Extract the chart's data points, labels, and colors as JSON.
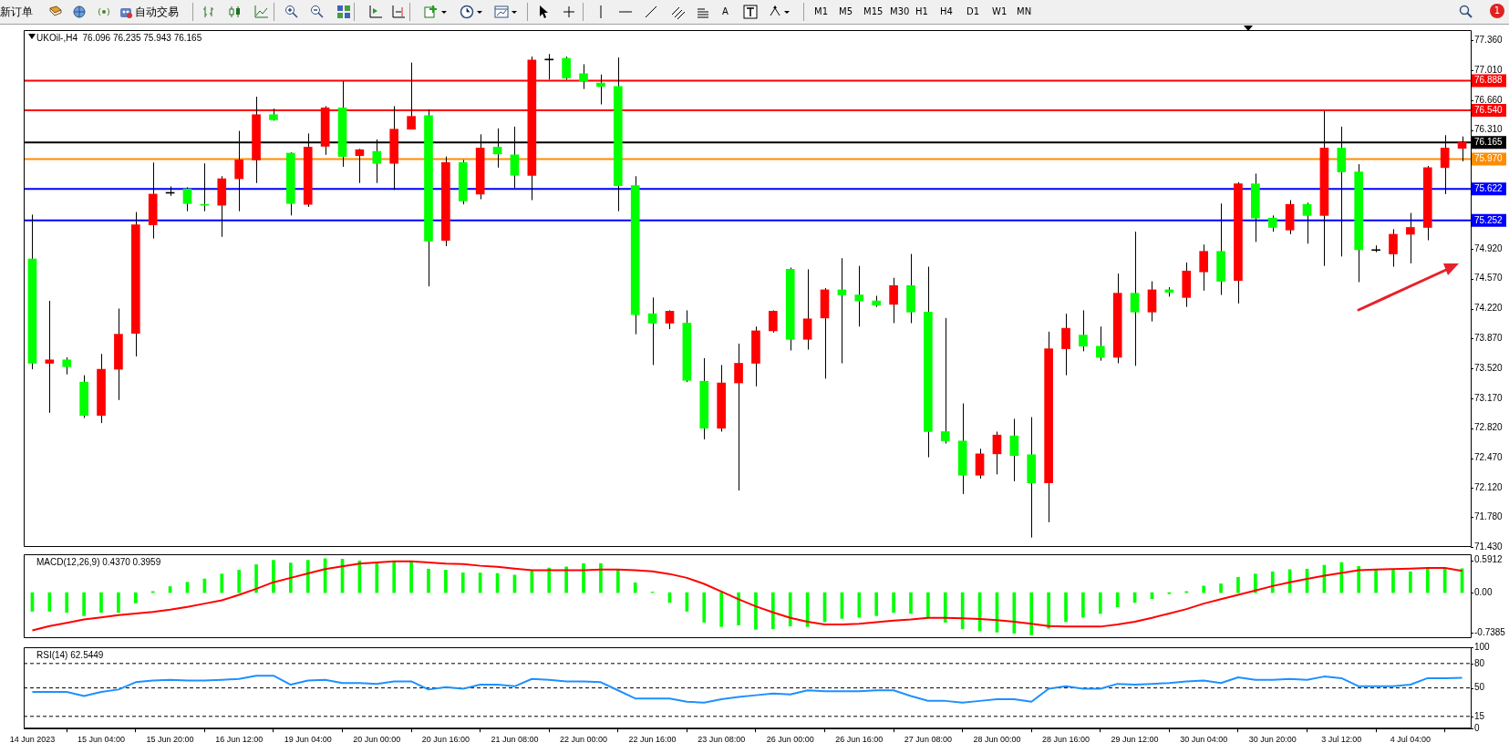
{
  "chart_data": [
    {
      "type": "candlestick",
      "title": "UKOil-,H4  76.096 76.235 75.943 76.165",
      "categories": [
        null,
        null,
        null,
        null,
        null,
        null,
        null,
        null,
        null,
        null,
        null,
        null,
        null,
        null,
        null,
        null,
        null,
        null,
        null,
        null,
        null,
        null,
        null,
        null,
        null,
        null,
        null,
        null,
        null,
        null,
        null,
        null,
        null,
        null,
        null,
        null,
        null,
        null,
        null,
        null,
        null,
        null,
        null,
        null,
        null,
        null,
        null,
        null,
        null,
        null,
        null,
        null,
        null,
        null,
        null,
        null,
        null,
        null,
        null,
        null,
        null,
        null,
        null,
        null,
        null,
        null,
        null,
        null,
        null,
        null,
        null,
        null,
        null,
        null,
        null,
        null,
        null,
        null,
        null,
        null,
        null,
        null,
        null,
        null
      ],
      "ohlc": [
        [
          74.8,
          75.32,
          73.51,
          73.58
        ],
        [
          73.58,
          74.31,
          73.0,
          73.62
        ],
        [
          73.62,
          73.65,
          73.45,
          73.54
        ],
        [
          73.36,
          73.44,
          72.94,
          72.97
        ],
        [
          72.97,
          73.69,
          72.88,
          73.51
        ],
        [
          73.51,
          74.22,
          73.15,
          73.92
        ],
        [
          73.93,
          75.35,
          73.66,
          75.2
        ],
        [
          75.2,
          75.93,
          75.04,
          75.56
        ],
        [
          75.57,
          75.65,
          75.54,
          75.58
        ],
        [
          75.62,
          75.64,
          75.36,
          75.45
        ],
        [
          75.44,
          75.92,
          75.36,
          75.43
        ],
        [
          75.43,
          75.77,
          75.06,
          75.74
        ],
        [
          75.74,
          76.3,
          75.36,
          75.96
        ],
        [
          75.96,
          76.7,
          75.69,
          76.49
        ],
        [
          76.49,
          76.56,
          76.42,
          76.43
        ],
        [
          76.04,
          76.05,
          75.31,
          75.45
        ],
        [
          75.44,
          76.27,
          75.41,
          76.11
        ],
        [
          76.12,
          76.59,
          76.02,
          76.57
        ],
        [
          76.57,
          76.88,
          75.88,
          76.0
        ],
        [
          76.01,
          76.09,
          75.69,
          76.08
        ],
        [
          76.06,
          76.2,
          75.69,
          75.92
        ],
        [
          75.92,
          76.59,
          75.61,
          76.32
        ],
        [
          76.32,
          77.1,
          76.32,
          76.47
        ],
        [
          76.48,
          76.55,
          74.48,
          75.01
        ],
        [
          75.02,
          76.0,
          74.95,
          75.93
        ],
        [
          75.93,
          75.96,
          75.44,
          75.48
        ],
        [
          75.56,
          76.26,
          75.5,
          76.1
        ],
        [
          76.11,
          76.33,
          75.87,
          76.03
        ],
        [
          76.02,
          76.35,
          75.63,
          75.78
        ],
        [
          75.78,
          77.17,
          75.49,
          77.13
        ],
        [
          77.13,
          77.2,
          76.9,
          77.14
        ],
        [
          77.15,
          77.17,
          76.9,
          76.92
        ],
        [
          76.97,
          77.08,
          76.79,
          76.88
        ],
        [
          76.86,
          76.96,
          76.61,
          76.82
        ],
        [
          76.82,
          77.16,
          75.36,
          75.66
        ],
        [
          75.66,
          75.77,
          73.92,
          74.15
        ],
        [
          74.16,
          74.35,
          73.56,
          74.05
        ],
        [
          74.05,
          74.2,
          73.98,
          74.19
        ],
        [
          74.05,
          74.2,
          73.36,
          73.38
        ],
        [
          73.37,
          73.64,
          72.69,
          72.82
        ],
        [
          72.82,
          73.56,
          72.78,
          73.35
        ],
        [
          73.35,
          73.81,
          72.09,
          73.58
        ],
        [
          73.58,
          74.01,
          73.31,
          73.96
        ],
        [
          73.96,
          74.2,
          73.94,
          74.19
        ],
        [
          74.68,
          74.7,
          73.73,
          73.86
        ],
        [
          73.86,
          74.68,
          73.74,
          74.1
        ],
        [
          74.11,
          74.46,
          73.4,
          74.44
        ],
        [
          74.44,
          74.81,
          73.58,
          74.38
        ],
        [
          74.38,
          74.72,
          74.01,
          74.31
        ],
        [
          74.31,
          74.37,
          74.24,
          74.26
        ],
        [
          74.27,
          74.58,
          74.05,
          74.49
        ],
        [
          74.49,
          74.86,
          74.05,
          74.18
        ],
        [
          74.18,
          74.71,
          72.48,
          72.78
        ],
        [
          72.78,
          74.11,
          72.64,
          72.67
        ],
        [
          72.67,
          73.11,
          72.05,
          72.27
        ],
        [
          72.27,
          72.58,
          72.23,
          72.52
        ],
        [
          72.52,
          72.78,
          72.28,
          72.74
        ],
        [
          72.73,
          72.93,
          72.2,
          72.5
        ],
        [
          72.51,
          72.95,
          71.54,
          72.18
        ],
        [
          72.18,
          73.95,
          71.72,
          73.75
        ],
        [
          73.75,
          74.16,
          73.44,
          73.99
        ],
        [
          73.91,
          74.2,
          73.72,
          73.78
        ],
        [
          73.78,
          74.01,
          73.61,
          73.65
        ],
        [
          73.65,
          74.63,
          73.58,
          74.4
        ],
        [
          74.4,
          75.12,
          73.55,
          74.18
        ],
        [
          74.18,
          74.54,
          74.07,
          74.44
        ],
        [
          74.44,
          74.47,
          74.36,
          74.41
        ],
        [
          74.35,
          74.76,
          74.24,
          74.66
        ],
        [
          74.65,
          74.97,
          74.43,
          74.89
        ],
        [
          74.89,
          75.45,
          74.38,
          74.54
        ],
        [
          74.55,
          75.7,
          74.28,
          75.68
        ],
        [
          75.68,
          75.8,
          75.0,
          75.28
        ],
        [
          75.28,
          75.31,
          75.12,
          75.17
        ],
        [
          75.14,
          75.49,
          75.09,
          75.44
        ],
        [
          75.44,
          75.46,
          74.98,
          75.31
        ],
        [
          75.31,
          76.53,
          74.72,
          76.1
        ],
        [
          76.1,
          76.35,
          74.83,
          75.82
        ],
        [
          75.82,
          75.91,
          74.53,
          74.91
        ],
        [
          74.9,
          74.96,
          74.88,
          74.9
        ],
        [
          74.86,
          75.15,
          74.71,
          75.09
        ],
        [
          75.09,
          75.34,
          74.75,
          75.17
        ],
        [
          75.17,
          75.89,
          75.02,
          75.87
        ],
        [
          75.87,
          76.25,
          75.56,
          76.1
        ],
        [
          76.096,
          76.235,
          75.943,
          76.165
        ]
      ],
      "colors": [
        "#00ff00",
        "#ff0000",
        "#00ff00",
        "#00ff00",
        "#ff0000",
        "#ff0000",
        "#ff0000",
        "#ff0000",
        "#000000",
        "#00ff00",
        "#00ff00",
        "#ff0000",
        "#ff0000",
        "#ff0000",
        "#00ff00",
        "#00ff00",
        "#ff0000",
        "#ff0000",
        "#00ff00",
        "#ff0000",
        "#00ff00",
        "#ff0000",
        "#ff0000",
        "#00ff00",
        "#ff0000",
        "#00ff00",
        "#ff0000",
        "#00ff00",
        "#00ff00",
        "#ff0000",
        "#000000",
        "#00ff00",
        "#00ff00",
        "#00ff00",
        "#00ff00",
        "#00ff00",
        "#00ff00",
        "#ff0000",
        "#00ff00",
        "#00ff00",
        "#ff0000",
        "#ff0000",
        "#ff0000",
        "#ff0000",
        "#00ff00",
        "#ff0000",
        "#ff0000",
        "#00ff00",
        "#00ff00",
        "#00ff00",
        "#ff0000",
        "#00ff00",
        "#00ff00",
        "#00ff00",
        "#00ff00",
        "#ff0000",
        "#ff0000",
        "#00ff00",
        "#00ff00",
        "#ff0000",
        "#ff0000",
        "#00ff00",
        "#00ff00",
        "#ff0000",
        "#00ff00",
        "#ff0000",
        "#00ff00",
        "#ff0000",
        "#ff0000",
        "#00ff00",
        "#ff0000",
        "#00ff00",
        "#00ff00",
        "#ff0000",
        "#00ff00",
        "#ff0000",
        "#00ff00",
        "#00ff00",
        "#000000",
        "#ff0000",
        "#ff0000",
        "#ff0000",
        "#ff0000",
        "#ff0000"
      ],
      "ylim": [
        71.43,
        77.48
      ],
      "yticks": [
        {
          "value": 77.36,
          "label": "77.360"
        },
        {
          "value": 77.01,
          "label": "77.010"
        },
        {
          "value": 76.66,
          "label": "76.660"
        },
        {
          "value": 76.31,
          "label": "76.310"
        },
        {
          "value": 74.92,
          "label": "74.920"
        },
        {
          "value": 74.57,
          "label": "74.570"
        },
        {
          "value": 74.22,
          "label": "74.220"
        },
        {
          "value": 73.87,
          "label": "73.870"
        },
        {
          "value": 73.52,
          "label": "73.520"
        },
        {
          "value": 73.17,
          "label": "73.170"
        },
        {
          "value": 72.82,
          "label": "72.820"
        },
        {
          "value": 72.47,
          "label": "72.470"
        },
        {
          "value": 72.12,
          "label": "72.120"
        },
        {
          "value": 71.78,
          "label": "71.780"
        },
        {
          "value": 71.43,
          "label": "71.430"
        }
      ],
      "ref_lines": [
        {
          "axis": "y",
          "value": 76.888,
          "label": "76.888",
          "color": "#ff0000"
        },
        {
          "axis": "y",
          "value": 76.54,
          "label": "76.540",
          "color": "#ff0000"
        },
        {
          "axis": "y",
          "value": 76.165,
          "label": "76.165",
          "color": "#000000"
        },
        {
          "axis": "y",
          "value": 75.97,
          "label": "75.970",
          "color": "#ff8c00"
        },
        {
          "axis": "y",
          "value": 75.622,
          "label": "75.622",
          "color": "#0000ff"
        },
        {
          "axis": "y",
          "value": 75.252,
          "label": "75.252",
          "color": "#0000ff"
        }
      ],
      "tick_labels": "y"
    },
    {
      "type": "bar",
      "title": "MACD(12,26,9) 0.4370 0.3959",
      "categories": [
        null,
        null,
        null,
        null,
        null,
        null,
        null,
        null,
        null,
        null,
        null,
        null,
        null,
        null,
        null,
        null,
        null,
        null,
        null,
        null,
        null,
        null,
        null,
        null,
        null,
        null,
        null,
        null,
        null,
        null,
        null,
        null,
        null,
        null,
        null,
        null,
        null,
        null,
        null,
        null,
        null,
        null,
        null,
        null,
        null,
        null,
        null,
        null,
        null,
        null,
        null,
        null,
        null,
        null,
        null,
        null,
        null,
        null,
        null,
        null,
        null,
        null,
        null,
        null,
        null,
        null,
        null,
        null,
        null,
        null,
        null,
        null,
        null,
        null,
        null,
        null,
        null,
        null,
        null,
        null,
        null,
        null,
        null,
        null
      ],
      "series": [
        {
          "type": "bar",
          "color": "#00ff00",
          "values": [
            -0.34,
            -0.34,
            -0.36,
            -0.42,
            -0.36,
            -0.36,
            -0.19,
            0.02,
            0.11,
            0.19,
            0.25,
            0.34,
            0.41,
            0.51,
            0.59,
            0.54,
            0.59,
            0.62,
            0.61,
            0.58,
            0.55,
            0.57,
            0.56,
            0.43,
            0.41,
            0.36,
            0.36,
            0.35,
            0.32,
            0.41,
            0.45,
            0.47,
            0.53,
            0.53,
            0.41,
            0.18,
            0.01,
            -0.18,
            -0.34,
            -0.54,
            -0.62,
            -0.59,
            -0.67,
            -0.66,
            -0.61,
            -0.62,
            -0.53,
            -0.47,
            -0.45,
            -0.42,
            -0.36,
            -0.38,
            -0.45,
            -0.54,
            -0.66,
            -0.7,
            -0.72,
            -0.74,
            -0.77,
            -0.65,
            -0.53,
            -0.45,
            -0.38,
            -0.26,
            -0.18,
            -0.11,
            -0.02,
            0.02,
            0.12,
            0.16,
            0.28,
            0.34,
            0.38,
            0.42,
            0.43,
            0.5,
            0.55,
            0.48,
            0.41,
            0.41,
            0.38,
            0.43,
            0.45,
            0.437
          ]
        },
        {
          "type": "line",
          "color": "#ff0000",
          "values": [
            -0.69,
            -0.61,
            -0.55,
            -0.49,
            -0.45,
            -0.41,
            -0.38,
            -0.35,
            -0.31,
            -0.26,
            -0.2,
            -0.14,
            -0.04,
            0.07,
            0.19,
            0.27,
            0.35,
            0.43,
            0.48,
            0.53,
            0.55,
            0.57,
            0.57,
            0.55,
            0.53,
            0.52,
            0.49,
            0.47,
            0.44,
            0.41,
            0.41,
            0.41,
            0.41,
            0.42,
            0.42,
            0.41,
            0.39,
            0.34,
            0.27,
            0.16,
            0.02,
            -0.12,
            -0.25,
            -0.36,
            -0.46,
            -0.53,
            -0.58,
            -0.58,
            -0.57,
            -0.54,
            -0.51,
            -0.49,
            -0.46,
            -0.46,
            -0.47,
            -0.48,
            -0.5,
            -0.53,
            -0.57,
            -0.61,
            -0.62,
            -0.62,
            -0.62,
            -0.58,
            -0.53,
            -0.46,
            -0.38,
            -0.3,
            -0.2,
            -0.12,
            -0.04,
            0.04,
            0.12,
            0.19,
            0.25,
            0.31,
            0.36,
            0.41,
            0.42,
            0.43,
            0.44,
            0.45,
            0.45,
            0.3959
          ]
        }
      ],
      "ylim": [
        -0.83,
        0.7
      ],
      "yticks": [
        {
          "value": 0.5912,
          "label": "0.5912"
        },
        {
          "value": 0,
          "label": "0.00"
        },
        {
          "value": -0.7385,
          "label": "-0.7385"
        }
      ],
      "tick_labels": "y"
    },
    {
      "type": "line",
      "title": "RSI(14) 62.5449",
      "categories": [
        "14 Jun 2023",
        null,
        null,
        null,
        "15 Jun 04:00",
        null,
        null,
        null,
        "15 Jun 20:00",
        null,
        null,
        null,
        "16 Jun 12:00",
        null,
        null,
        null,
        "19 Jun 04:00",
        null,
        null,
        null,
        "20 Jun 00:00",
        null,
        null,
        null,
        "20 Jun 16:00",
        null,
        null,
        null,
        "21 Jun 08:00",
        null,
        null,
        null,
        "22 Jun 00:00",
        null,
        null,
        null,
        "22 Jun 16:00",
        null,
        null,
        null,
        "23 Jun 08:00",
        null,
        null,
        null,
        "26 Jun 00:00",
        null,
        null,
        null,
        "26 Jun 16:00",
        null,
        null,
        null,
        "27 Jun 08:00",
        null,
        null,
        null,
        "28 Jun 00:00",
        null,
        null,
        null,
        "28 Jun 16:00",
        null,
        null,
        null,
        "29 Jun 12:00",
        null,
        null,
        null,
        "30 Jun 04:00",
        null,
        null,
        null,
        "30 Jun 20:00",
        null,
        null,
        null,
        "3 Jul 12:00",
        null,
        null,
        null,
        "4 Jul 04:00",
        null,
        null,
        null
      ],
      "series": [
        {
          "color": "#1e90ff",
          "values": [
            45,
            45,
            45,
            40,
            45,
            48,
            57,
            59,
            60,
            59,
            59,
            60,
            61,
            65,
            65,
            54,
            59,
            60,
            56,
            56,
            55,
            58,
            58,
            48,
            51,
            49,
            54,
            54,
            52,
            61,
            60,
            58,
            58,
            57,
            47,
            37,
            37,
            37,
            33,
            32,
            36,
            39,
            41,
            43,
            42,
            47,
            46,
            46,
            46,
            47,
            47,
            40,
            34,
            34,
            32,
            34,
            36,
            36,
            33,
            49,
            52,
            49,
            49,
            55,
            54,
            55,
            56,
            58,
            59,
            56,
            63,
            60,
            60,
            61,
            60,
            64,
            62,
            52,
            52,
            52,
            54,
            62,
            62,
            62.5449
          ]
        }
      ],
      "ylim": [
        0,
        100
      ],
      "yticks": [
        100,
        80,
        50,
        15,
        0
      ],
      "ref_lines": [
        {
          "axis": "y",
          "value": 80,
          "color": "#000000",
          "line_style": "dashed"
        },
        {
          "axis": "y",
          "value": 50,
          "color": "#000000",
          "line_style": "dashed"
        },
        {
          "axis": "y",
          "value": 15,
          "color": "#000000",
          "line_style": "dashed"
        }
      ]
    },
    {
      "type": "other",
      "annotations": [
        "新订单",
        "自动交易",
        "A",
        "M1",
        "M5",
        "M15",
        "M30",
        "H1",
        "H4",
        "D1",
        "W1",
        "MN",
        "1"
      ]
    }
  ]
}
